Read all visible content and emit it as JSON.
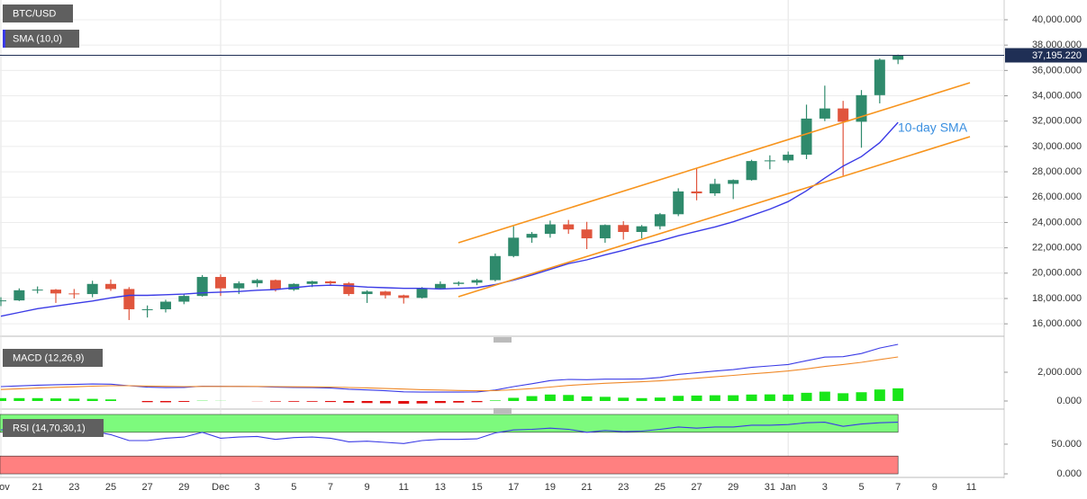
{
  "chart_data": [
    {
      "type": "candlestick",
      "title": "BTC/USD",
      "categories": [
        "Nov",
        null,
        "21",
        null,
        "23",
        null,
        "25",
        null,
        "27",
        null,
        "29",
        null,
        "Dec",
        null,
        "3",
        null,
        "5",
        null,
        "7",
        null,
        "9",
        null,
        "11",
        null,
        "13",
        null,
        "15",
        null,
        "17",
        null,
        "19",
        null,
        "21",
        null,
        "23",
        null,
        "25",
        null,
        "27",
        null,
        "29",
        null,
        "31",
        "Jan",
        null,
        "3",
        null,
        "5",
        null,
        "7",
        null,
        "9",
        null,
        "11"
      ],
      "open": [
        17800,
        17850,
        18650,
        18700,
        18400,
        18350,
        19150,
        18750,
        17150,
        17150,
        17750,
        18200,
        19700,
        18800,
        19200,
        19450,
        18700,
        19150,
        19350,
        19200,
        18350,
        18550,
        18250,
        18050,
        18800,
        19150,
        19250,
        19450,
        21350,
        22800,
        23100,
        23850,
        23450,
        22750,
        23800,
        23250,
        23700,
        24650,
        26450,
        26300,
        27050,
        27350,
        28850,
        28900,
        29350,
        32200,
        33000,
        31950,
        34050,
        36850,
        null,
        null,
        null,
        null
      ],
      "high": [
        18100,
        18800,
        18950,
        18750,
        18750,
        19400,
        19500,
        18900,
        17450,
        17900,
        18350,
        19850,
        19900,
        19350,
        19550,
        19500,
        19200,
        19400,
        19400,
        19300,
        18650,
        18600,
        18300,
        18900,
        19350,
        19350,
        19550,
        21550,
        23700,
        23250,
        24150,
        24200,
        24050,
        23850,
        24100,
        23800,
        24750,
        26700,
        28300,
        27450,
        27400,
        28950,
        29300,
        29600,
        33300,
        34800,
        33600,
        34450,
        36950,
        37250,
        null,
        null,
        null,
        null
      ],
      "low": [
        17400,
        17800,
        18400,
        17650,
        18000,
        18100,
        18600,
        16300,
        16500,
        16900,
        17550,
        18150,
        18200,
        18350,
        18900,
        18550,
        18600,
        18900,
        19000,
        18200,
        17650,
        18000,
        17600,
        18000,
        18750,
        19000,
        19050,
        19350,
        21250,
        22400,
        22800,
        23100,
        21900,
        22400,
        22650,
        22750,
        23450,
        24500,
        25750,
        26100,
        25850,
        27300,
        28200,
        28700,
        29000,
        32000,
        27700,
        29900,
        33400,
        36500,
        null,
        null,
        null,
        null
      ],
      "close": [
        17850,
        18650,
        18700,
        18400,
        18350,
        19150,
        18750,
        17150,
        17150,
        17750,
        18200,
        19700,
        18800,
        19200,
        19450,
        18700,
        19150,
        19350,
        19200,
        18350,
        18550,
        18250,
        18050,
        18800,
        19150,
        19250,
        19450,
        21350,
        22800,
        23100,
        23850,
        23450,
        22750,
        23800,
        23250,
        23700,
        24650,
        26450,
        26300,
        27050,
        27350,
        28850,
        28900,
        29350,
        32200,
        33000,
        31950,
        34050,
        36850,
        37195.22,
        null,
        null,
        null,
        null
      ],
      "up_color": "#2f8a6c",
      "down_color": "#e0553d",
      "series": [
        {
          "name": "SMA (10,0)",
          "color": "#3b3be6",
          "values": [
            16600,
            16900,
            17200,
            17400,
            17600,
            17800,
            18050,
            18250,
            18250,
            18300,
            18350,
            18450,
            18500,
            18550,
            18650,
            18700,
            18850,
            19000,
            19050,
            19000,
            18900,
            18850,
            18800,
            18800,
            18750,
            18800,
            18850,
            19100,
            19450,
            19850,
            20300,
            20750,
            21050,
            21450,
            21800,
            22200,
            22550,
            22950,
            23300,
            23650,
            24050,
            24550,
            25050,
            25650,
            26500,
            27500,
            28450,
            29200,
            30300,
            31900,
            null,
            null,
            null,
            null
          ]
        }
      ],
      "annotation": "10-day SMA",
      "last_price": {
        "value": 37195.22,
        "label": "37,195.220"
      },
      "ylim": [
        15090,
        41560
      ],
      "yticks": [
        {
          "value": 16000,
          "label": "16,000.000"
        },
        {
          "value": 18000,
          "label": "18,000.000"
        },
        {
          "value": 20000,
          "label": "20,000.000"
        },
        {
          "value": 22000,
          "label": "22,000.000"
        },
        {
          "value": 24000,
          "label": "24,000.000"
        },
        {
          "value": 26000,
          "label": "26,000.000"
        },
        {
          "value": 28000,
          "label": "28,000.000"
        },
        {
          "value": 30000,
          "label": "30,000.000"
        },
        {
          "value": 32000,
          "label": "32,000.000"
        },
        {
          "value": 34000,
          "label": "34,000.000"
        },
        {
          "value": 36000,
          "label": "36,000.000"
        },
        {
          "value": 38000,
          "label": "38,000.000"
        },
        {
          "value": 40000,
          "label": "40,000.000"
        }
      ],
      "grid": true
    },
    {
      "type": "macd",
      "title": "MACD (12,26,9)",
      "series": [
        {
          "color": "#3b3be6",
          "values": [
            1000,
            1050,
            1100,
            1130,
            1150,
            1180,
            1170,
            1060,
            960,
            930,
            940,
            1030,
            1020,
            1010,
            1000,
            960,
            940,
            930,
            900,
            820,
            770,
            710,
            640,
            620,
            620,
            620,
            630,
            760,
            1000,
            1200,
            1420,
            1500,
            1480,
            1520,
            1520,
            1540,
            1640,
            1850,
            1960,
            2080,
            2180,
            2340,
            2440,
            2540,
            2800,
            3050,
            3080,
            3300,
            3680,
            3940,
            null,
            null,
            null,
            null
          ]
        },
        {
          "color": "#f08a2a",
          "values": [
            800,
            850,
            900,
            950,
            990,
            1030,
            1060,
            1060,
            1040,
            1020,
            1000,
            1010,
            1010,
            1010,
            1010,
            1000,
            990,
            980,
            970,
            940,
            910,
            870,
            830,
            790,
            760,
            730,
            710,
            720,
            780,
            860,
            970,
            1080,
            1160,
            1230,
            1290,
            1340,
            1400,
            1490,
            1580,
            1680,
            1780,
            1890,
            1980,
            2090,
            2230,
            2400,
            2540,
            2690,
            2880,
            3060,
            null,
            null,
            null,
            null
          ]
        }
      ],
      "histogram": {
        "up_color": "#19e619",
        "down_color": "#e01010",
        "values": [
          200,
          200,
          200,
          180,
          160,
          150,
          110,
          0,
          -80,
          -90,
          -60,
          20,
          10,
          0,
          -10,
          -40,
          -50,
          -50,
          -70,
          -120,
          -140,
          -160,
          -190,
          -170,
          -140,
          -110,
          -80,
          40,
          220,
          340,
          450,
          420,
          320,
          290,
          230,
          200,
          240,
          360,
          380,
          400,
          400,
          450,
          460,
          450,
          570,
          650,
          540,
          610,
          800,
          880,
          null,
          null,
          null,
          null
        ]
      },
      "ylim": [
        -375,
        4000
      ],
      "yticks": [
        {
          "value": 0,
          "label": "0.000"
        },
        {
          "value": 2000,
          "label": "2,000.000"
        }
      ]
    },
    {
      "type": "rsi",
      "title": "RSI (14,70,30,1)",
      "series": [
        {
          "color": "#3b3be6",
          "values": [
            74,
            75,
            74,
            70,
            69,
            72,
            66,
            56,
            56,
            60,
            62,
            70,
            60,
            62,
            63,
            58,
            61,
            62,
            60,
            54,
            55,
            53,
            51,
            56,
            58,
            58,
            59,
            69,
            74,
            75,
            77,
            75,
            70,
            73,
            71,
            72,
            75,
            79,
            77,
            79,
            79,
            82,
            82,
            83,
            86,
            87,
            80,
            84,
            86,
            87,
            null,
            null,
            null,
            null
          ]
        }
      ],
      "bands": [
        {
          "from": 70,
          "to": 100,
          "color": "#7dfa7d"
        },
        {
          "from": 0,
          "to": 30,
          "color": "#ff8080"
        }
      ],
      "ylim": [
        -4.5,
        101.5
      ],
      "yticks": [
        {
          "value": 0,
          "label": "0.000"
        },
        {
          "value": 50,
          "label": "50.000"
        }
      ]
    }
  ]
}
